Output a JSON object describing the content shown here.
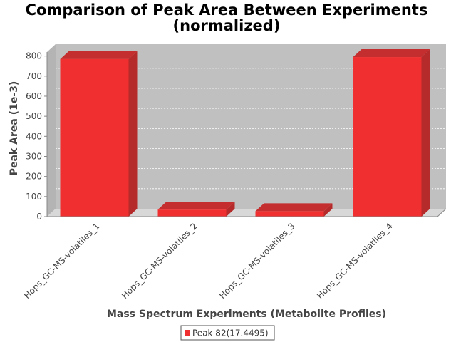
{
  "chart_data": {
    "type": "bar",
    "title": [
      "Comparison of Peak Area Between Experiments",
      "(normalized)"
    ],
    "xlabel": "Mass Spectrum Experiments (Metabolite Profiles)",
    "ylabel": "Peak Area (1e-3)",
    "categories": [
      "Hops_GC-MS-volatiles_1",
      "Hops_GC-MS-volatiles_2",
      "Hops_GC-MS-volatiles_3",
      "Hops_GC-MS-volatiles_4"
    ],
    "series": [
      {
        "name": "Peak 82(17.4495)",
        "values": [
          785,
          35,
          27,
          795
        ],
        "color": "#f03030"
      }
    ],
    "ylim": [
      0,
      820
    ],
    "yticks": [
      "0",
      "100",
      "200",
      "300",
      "400",
      "500",
      "600",
      "700",
      "800"
    ],
    "grid": true,
    "legend": "bottom-center",
    "style": "3d",
    "plot_background": "#c0c0c0"
  }
}
